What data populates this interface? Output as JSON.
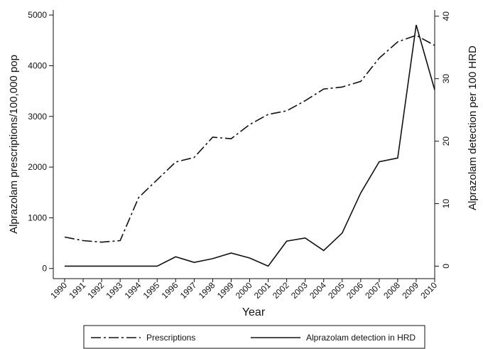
{
  "chart_data": {
    "type": "line",
    "x_label": "Year",
    "y_label": "Alprazolam prescriptions/100,000 pop",
    "y2_label": "Alprazolam detection per 100 HRD",
    "x": [
      1990,
      1991,
      1992,
      1993,
      1994,
      1995,
      1996,
      1997,
      1998,
      1999,
      2000,
      2001,
      2002,
      2003,
      2004,
      2005,
      2006,
      2007,
      2008,
      2009,
      2010
    ],
    "xlim": [
      1990,
      2010
    ],
    "ylim": [
      -200,
      5100
    ],
    "yticks": [
      0,
      1000,
      2000,
      3000,
      4000,
      5000
    ],
    "y2lim": [
      -2,
      41
    ],
    "y2ticks": [
      0,
      10,
      20,
      30,
      40
    ],
    "legend": "bottom",
    "series": [
      {
        "name": "Prescriptions",
        "color": "#111111",
        "line_style": "dashed",
        "values": [
          620,
          550,
          520,
          550,
          1400,
          1750,
          2100,
          2190,
          2590,
          2560,
          2840,
          3040,
          3110,
          3310,
          3540,
          3580,
          3690,
          4150,
          4470,
          4600,
          4400
        ]
      },
      {
        "name": "Alprazolam detection in HRD",
        "color": "#111111",
        "line_style": "solid",
        "axis": "y2",
        "values": [
          0,
          0,
          0,
          0,
          0,
          0,
          1.5,
          0.6,
          1.2,
          2.1,
          1.3,
          0,
          4,
          4.5,
          2.5,
          5.3,
          11.7,
          16.7,
          17.3,
          38.6,
          28.2
        ]
      }
    ]
  }
}
